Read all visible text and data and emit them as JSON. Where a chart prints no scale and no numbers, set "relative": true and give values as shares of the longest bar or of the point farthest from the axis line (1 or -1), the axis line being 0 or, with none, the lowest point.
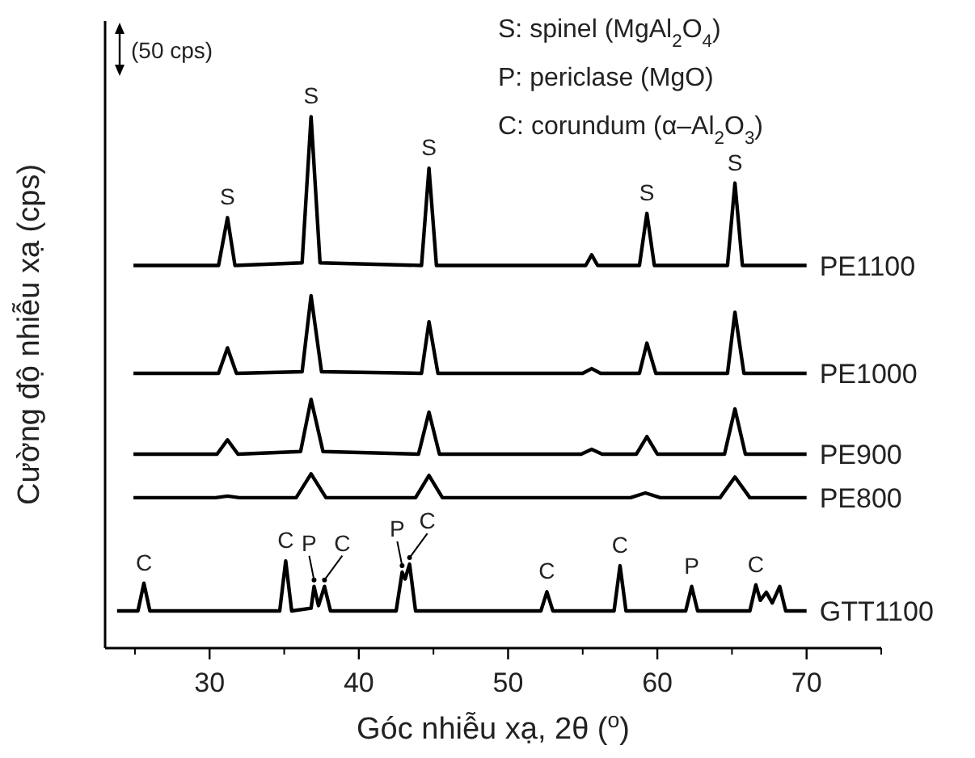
{
  "chart_data": {
    "type": "line",
    "relative": true,
    "xlabel": "Góc nhiễu xạ, 2θ ($^{o}$)",
    "ylabel": "Cường độ nhiễu xạ (cps)",
    "xlim": [
      23,
      75
    ],
    "xticks": [
      30,
      40,
      50,
      60,
      70
    ],
    "grid": false,
    "marker": "none",
    "line_style": "solid",
    "series": [
      {
        "name": "PE1100",
        "color": "#000000",
        "x": [
          24.9,
          30.6,
          31.2,
          31.7,
          36.2,
          36.8,
          37.4,
          44.2,
          44.7,
          45.2,
          55.2,
          55.6,
          56.0,
          58.8,
          59.3,
          59.8,
          64.7,
          65.2,
          65.7,
          70
        ],
        "values": [
          0.72,
          0.72,
          0.81,
          0.72,
          0.725,
          1.0,
          0.725,
          0.72,
          0.903,
          0.72,
          0.72,
          0.74,
          0.72,
          0.72,
          0.818,
          0.72,
          0.72,
          0.875,
          0.72,
          0.72
        ]
      },
      {
        "name": "PE1000",
        "color": "#000000",
        "x": [
          24.9,
          30.6,
          31.2,
          31.8,
          36.2,
          36.8,
          37.5,
          44.2,
          44.7,
          45.3,
          55.0,
          55.6,
          56.2,
          58.8,
          59.3,
          59.9,
          64.7,
          65.2,
          65.8,
          70
        ],
        "values": [
          0.517,
          0.517,
          0.565,
          0.517,
          0.52,
          0.663,
          0.52,
          0.517,
          0.614,
          0.517,
          0.517,
          0.526,
          0.517,
          0.517,
          0.574,
          0.517,
          0.517,
          0.632,
          0.517,
          0.517
        ]
      },
      {
        "name": "PE900",
        "color": "#000000",
        "x": [
          24.9,
          30.5,
          31.2,
          31.9,
          36.1,
          36.8,
          37.6,
          44.0,
          44.7,
          45.4,
          54.9,
          55.6,
          56.3,
          58.6,
          59.3,
          60.0,
          64.5,
          65.2,
          65.9,
          70
        ],
        "values": [
          0.365,
          0.365,
          0.392,
          0.365,
          0.37,
          0.468,
          0.37,
          0.365,
          0.444,
          0.365,
          0.365,
          0.374,
          0.365,
          0.365,
          0.398,
          0.365,
          0.365,
          0.45,
          0.365,
          0.365
        ]
      },
      {
        "name": "PE800",
        "color": "#000000",
        "x": [
          24.9,
          30.4,
          31.2,
          32,
          35.8,
          36.8,
          37.8,
          43.8,
          44.7,
          45.6,
          58.2,
          59.2,
          60.2,
          64.2,
          65.2,
          66.2,
          70
        ],
        "values": [
          0.283,
          0.283,
          0.286,
          0.283,
          0.283,
          0.328,
          0.283,
          0.283,
          0.325,
          0.283,
          0.283,
          0.292,
          0.283,
          0.283,
          0.322,
          0.283,
          0.283
        ]
      },
      {
        "name": "GTT1100",
        "color": "#000000",
        "x": [
          23.8,
          25.2,
          25.6,
          26.0,
          34.7,
          35.1,
          35.5,
          36.8,
          37.0,
          37.3,
          37.7,
          38.1,
          42.5,
          42.9,
          43.1,
          43.4,
          43.8,
          52.2,
          52.6,
          53.0,
          57.1,
          57.5,
          57.9,
          61.9,
          62.3,
          62.7,
          66.2,
          66.6,
          66.9,
          67.3,
          67.7,
          68.2,
          68.6,
          70
        ],
        "values": [
          0.07,
          0.07,
          0.122,
          0.07,
          0.07,
          0.164,
          0.07,
          0.075,
          0.116,
          0.08,
          0.116,
          0.07,
          0.07,
          0.143,
          0.13,
          0.158,
          0.07,
          0.07,
          0.106,
          0.07,
          0.07,
          0.155,
          0.07,
          0.07,
          0.116,
          0.07,
          0.07,
          0.119,
          0.09,
          0.105,
          0.085,
          0.116,
          0.07,
          0.07
        ]
      }
    ],
    "annotations": [
      "(50 cps)",
      "S: spinel (MgAl$_{2}$O$_{4}$)",
      "P: periclase (MgO)",
      "C: corundum (α–Al$_{2}$O$_{3}$)",
      {
        "text": "S",
        "x": 31.2,
        "y": 0.81
      },
      {
        "text": "S",
        "x": 36.8,
        "y": 1.0
      },
      {
        "text": "S",
        "x": 44.7,
        "y": 0.903
      },
      {
        "text": "S",
        "x": 59.3,
        "y": 0.818
      },
      {
        "text": "S",
        "x": 65.2,
        "y": 0.875
      },
      {
        "text": "C",
        "x": 25.6,
        "y": 0.122
      },
      {
        "text": "C",
        "x": 35.1,
        "y": 0.164
      },
      {
        "text": "P",
        "x": 37.0,
        "y": 0.116
      },
      {
        "text": "C",
        "x": 37.7,
        "y": 0.116
      },
      {
        "text": "P",
        "x": 42.9,
        "y": 0.143
      },
      {
        "text": "C",
        "x": 43.4,
        "y": 0.158
      },
      {
        "text": "C",
        "x": 52.6,
        "y": 0.106
      },
      {
        "text": "C",
        "x": 57.5,
        "y": 0.155
      },
      {
        "text": "P",
        "x": 62.3,
        "y": 0.116
      },
      {
        "text": "C",
        "x": 66.6,
        "y": 0.119
      }
    ]
  }
}
